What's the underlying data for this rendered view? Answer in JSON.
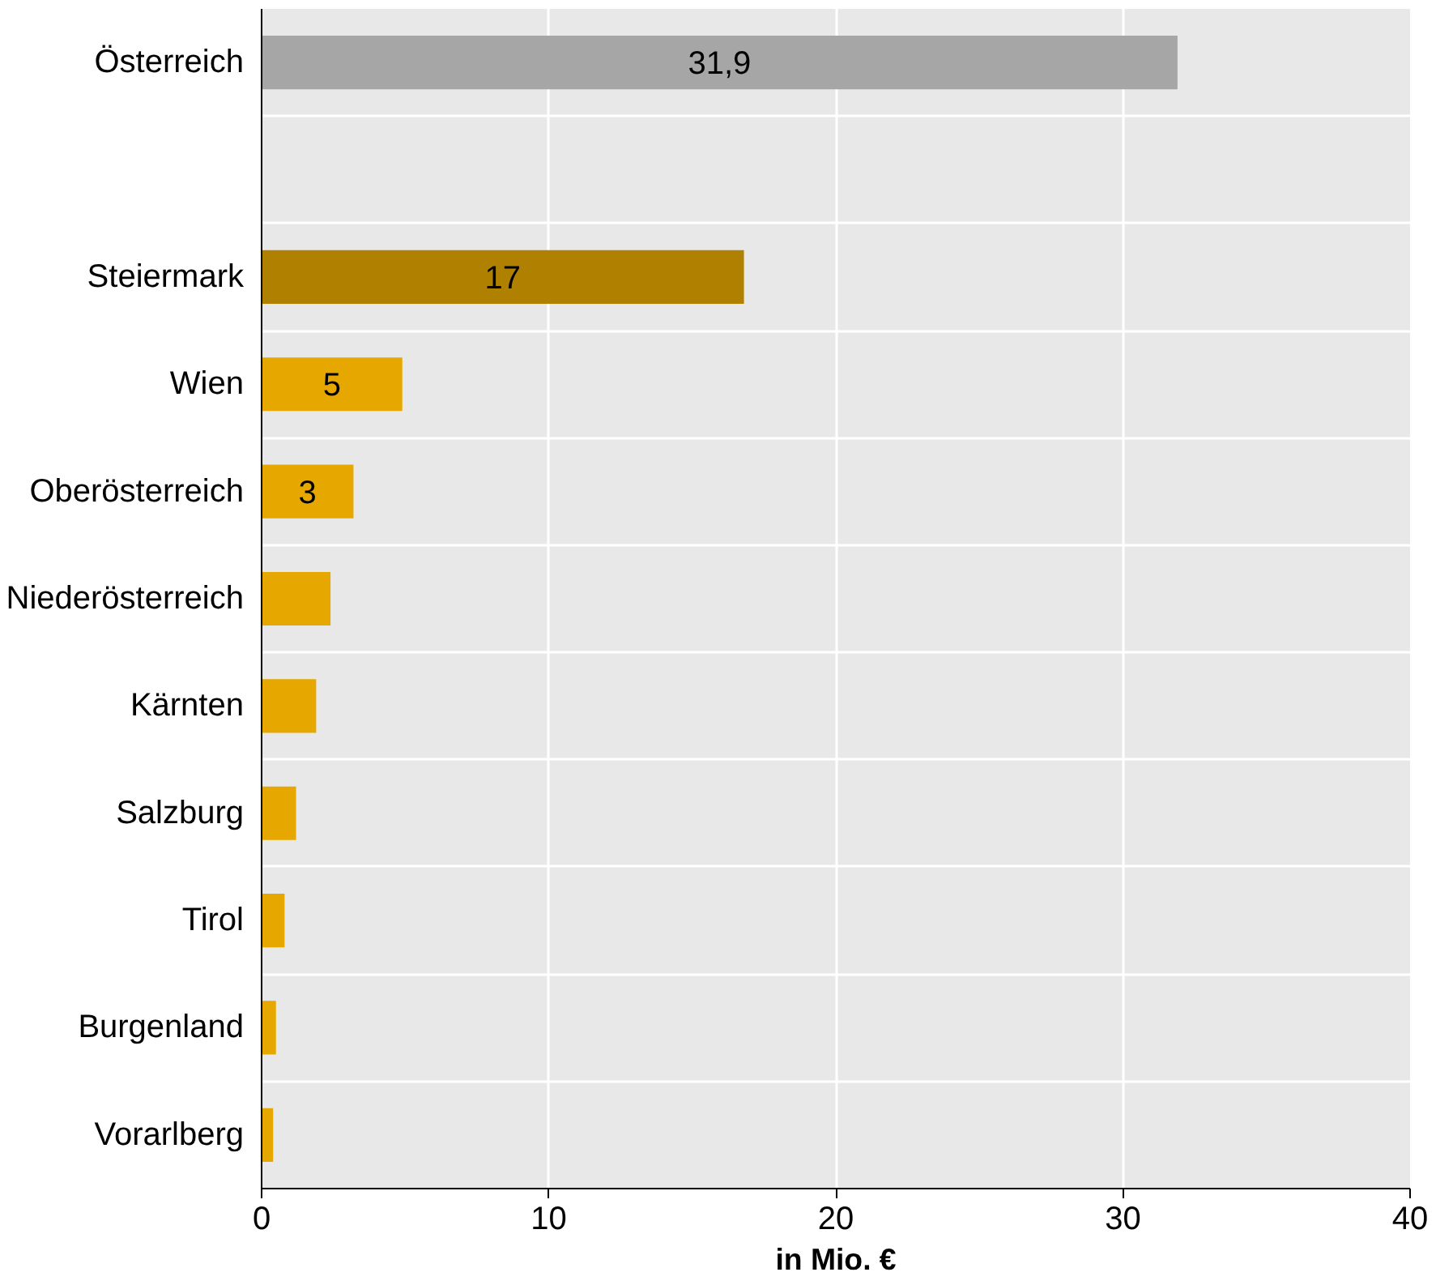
{
  "chart_data": {
    "type": "bar",
    "orientation": "horizontal",
    "xlabel": "in Mio. €",
    "categories": [
      "Österreich",
      null,
      "Steiermark",
      "Wien",
      "Oberösterreich",
      "Niederösterreich",
      "Kärnten",
      "Salzburg",
      "Tirol",
      "Burgenland",
      "Vorarlberg"
    ],
    "values": [
      31.9,
      null,
      16.8,
      4.9,
      3.2,
      2.4,
      1.9,
      1.2,
      0.8,
      0.5,
      0.4
    ],
    "colors": [
      "#a6a6a6",
      "#a6a6a6",
      "#b08000",
      "#e6a800",
      "#e6a800",
      "#e6a800",
      "#e6a800",
      "#e6a800",
      "#e6a800",
      "#e6a800",
      "#e6a800"
    ],
    "value_labels": [
      "31,9",
      null,
      "17",
      "5",
      "3",
      null,
      null,
      null,
      null,
      null,
      null
    ],
    "xlim": [
      0,
      40
    ],
    "xticks": [
      0,
      10,
      20,
      30,
      40
    ],
    "grid": true
  }
}
